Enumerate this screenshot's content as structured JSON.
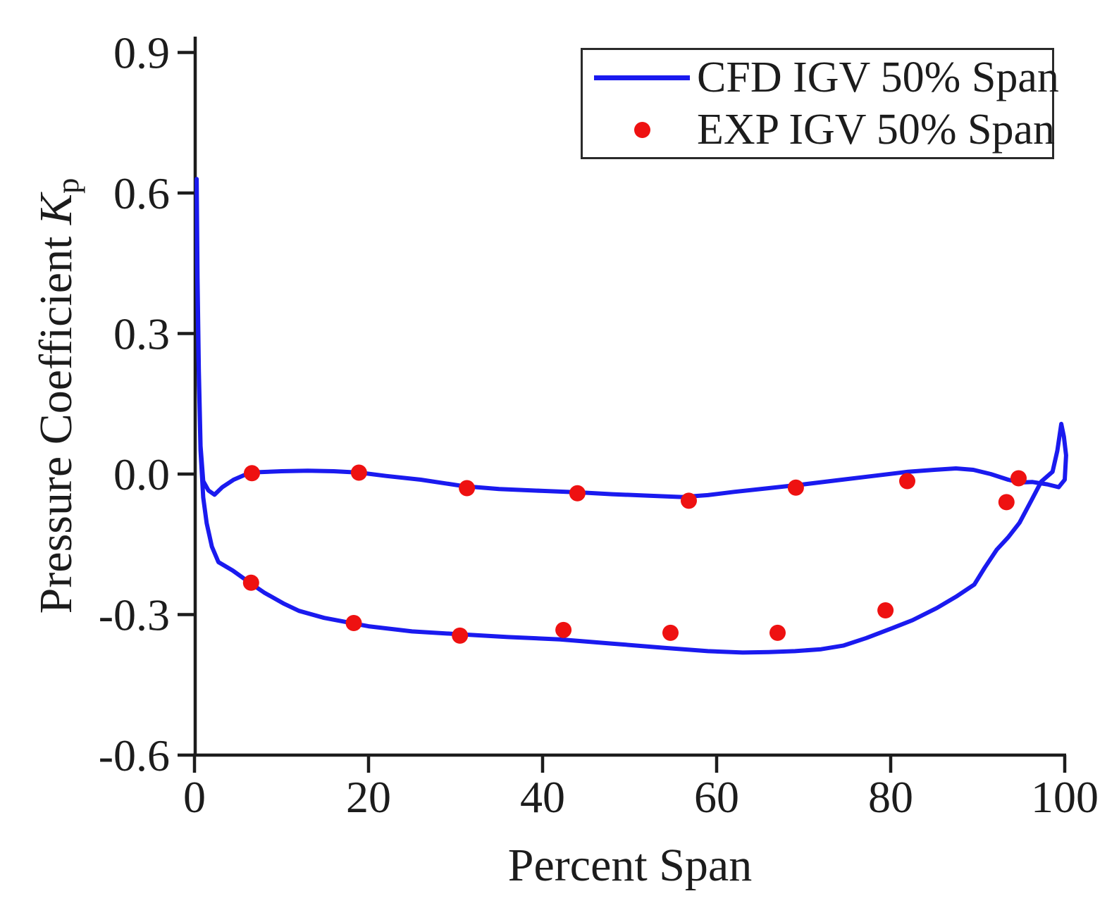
{
  "chart_data": {
    "type": "line",
    "title": "",
    "xlabel": "Percent Span",
    "ylabel": "Pressure Coefficient Kp",
    "ylabel_parts": {
      "text": "Pressure Coefficient ",
      "symbol": "K",
      "sub": "p"
    },
    "xlim": [
      0,
      100
    ],
    "ylim": [
      -0.6,
      0.9
    ],
    "grid": false,
    "legend_position": "top-right",
    "x_ticks": {
      "values": [
        0,
        20,
        40,
        60,
        80,
        100
      ],
      "labels": [
        "0",
        "20",
        "40",
        "60",
        "80",
        "100"
      ]
    },
    "y_ticks": {
      "values": [
        0.9,
        0.6,
        0.3,
        0.0,
        -0.3,
        -0.6
      ],
      "labels": [
        "0.9",
        "0.6",
        "0.3",
        "0.0",
        "-0.3",
        "-0.6"
      ]
    },
    "colors": {
      "cfd_line": "#1a1aef",
      "exp_marker": "#ee1111",
      "axis": "#1c1c1c",
      "background": "#ffffff"
    },
    "series": [
      {
        "name": "CFD IGV 50% Span",
        "type": "line",
        "color": "#1a1aef",
        "points": [
          [
            0.25,
            0.63
          ],
          [
            0.35,
            0.42
          ],
          [
            0.5,
            0.22
          ],
          [
            0.7,
            0.06
          ],
          [
            1.0,
            -0.015
          ],
          [
            1.6,
            -0.035
          ],
          [
            2.3,
            -0.044
          ],
          [
            3.2,
            -0.028
          ],
          [
            4.5,
            -0.012
          ],
          [
            6.0,
            0.0
          ],
          [
            7.5,
            0.004
          ],
          [
            10,
            0.006
          ],
          [
            13,
            0.007
          ],
          [
            16,
            0.006
          ],
          [
            19,
            0.003
          ],
          [
            22,
            -0.004
          ],
          [
            26,
            -0.012
          ],
          [
            31,
            -0.026
          ],
          [
            35,
            -0.032
          ],
          [
            40,
            -0.036
          ],
          [
            44,
            -0.039
          ],
          [
            48,
            -0.043
          ],
          [
            52,
            -0.046
          ],
          [
            56,
            -0.049
          ],
          [
            59,
            -0.045
          ],
          [
            62,
            -0.038
          ],
          [
            66,
            -0.03
          ],
          [
            70,
            -0.022
          ],
          [
            74,
            -0.013
          ],
          [
            78,
            -0.004
          ],
          [
            82,
            0.005
          ],
          [
            85,
            0.009
          ],
          [
            87.5,
            0.012
          ],
          [
            89.5,
            0.009
          ],
          [
            91.5,
            0.0
          ],
          [
            93.5,
            -0.012
          ],
          [
            94.8,
            -0.018
          ],
          [
            96.3,
            -0.017
          ],
          [
            98,
            -0.022
          ],
          [
            99.3,
            -0.028
          ],
          [
            100,
            -0.012
          ],
          [
            100.15,
            0.04
          ],
          [
            99.9,
            0.08
          ],
          [
            99.6,
            0.107
          ],
          [
            99.15,
            0.05
          ],
          [
            98.6,
            0.005
          ],
          [
            97.3,
            -0.016
          ],
          [
            96.2,
            -0.055
          ],
          [
            94.8,
            -0.104
          ],
          [
            93.5,
            -0.135
          ],
          [
            92.2,
            -0.161
          ],
          [
            90.8,
            -0.2
          ],
          [
            89.6,
            -0.236
          ],
          [
            87.5,
            -0.262
          ],
          [
            85.3,
            -0.286
          ],
          [
            82.5,
            -0.312
          ],
          [
            79.9,
            -0.331
          ],
          [
            77.2,
            -0.35
          ],
          [
            74.6,
            -0.366
          ],
          [
            72,
            -0.374
          ],
          [
            69,
            -0.378
          ],
          [
            66,
            -0.38
          ],
          [
            63,
            -0.381
          ],
          [
            59,
            -0.378
          ],
          [
            54,
            -0.371
          ],
          [
            48,
            -0.362
          ],
          [
            42,
            -0.353
          ],
          [
            36,
            -0.348
          ],
          [
            30.4,
            -0.342
          ],
          [
            25,
            -0.336
          ],
          [
            20,
            -0.325
          ],
          [
            14.9,
            -0.307
          ],
          [
            12,
            -0.292
          ],
          [
            10.3,
            -0.277
          ],
          [
            8,
            -0.253
          ],
          [
            6.5,
            -0.234
          ],
          [
            4.4,
            -0.206
          ],
          [
            2.75,
            -0.188
          ],
          [
            2.0,
            -0.155
          ],
          [
            1.4,
            -0.105
          ],
          [
            1.0,
            -0.05
          ],
          [
            0.7,
            0.05
          ],
          [
            0.45,
            0.25
          ],
          [
            0.3,
            0.45
          ],
          [
            0.25,
            0.63
          ]
        ]
      },
      {
        "name": "EXP IGV 50% Span",
        "type": "scatter",
        "color": "#ee1111",
        "points": [
          [
            6.6,
            0.002
          ],
          [
            18.9,
            0.003
          ],
          [
            31.3,
            -0.03
          ],
          [
            44.0,
            -0.041
          ],
          [
            56.8,
            -0.057
          ],
          [
            69.1,
            -0.029
          ],
          [
            81.9,
            -0.015
          ],
          [
            93.3,
            -0.06
          ],
          [
            94.7,
            -0.009
          ],
          [
            6.5,
            -0.232
          ],
          [
            18.3,
            -0.318
          ],
          [
            30.5,
            -0.345
          ],
          [
            42.4,
            -0.333
          ],
          [
            54.7,
            -0.339
          ],
          [
            67.0,
            -0.339
          ],
          [
            79.4,
            -0.291
          ]
        ]
      }
    ]
  }
}
